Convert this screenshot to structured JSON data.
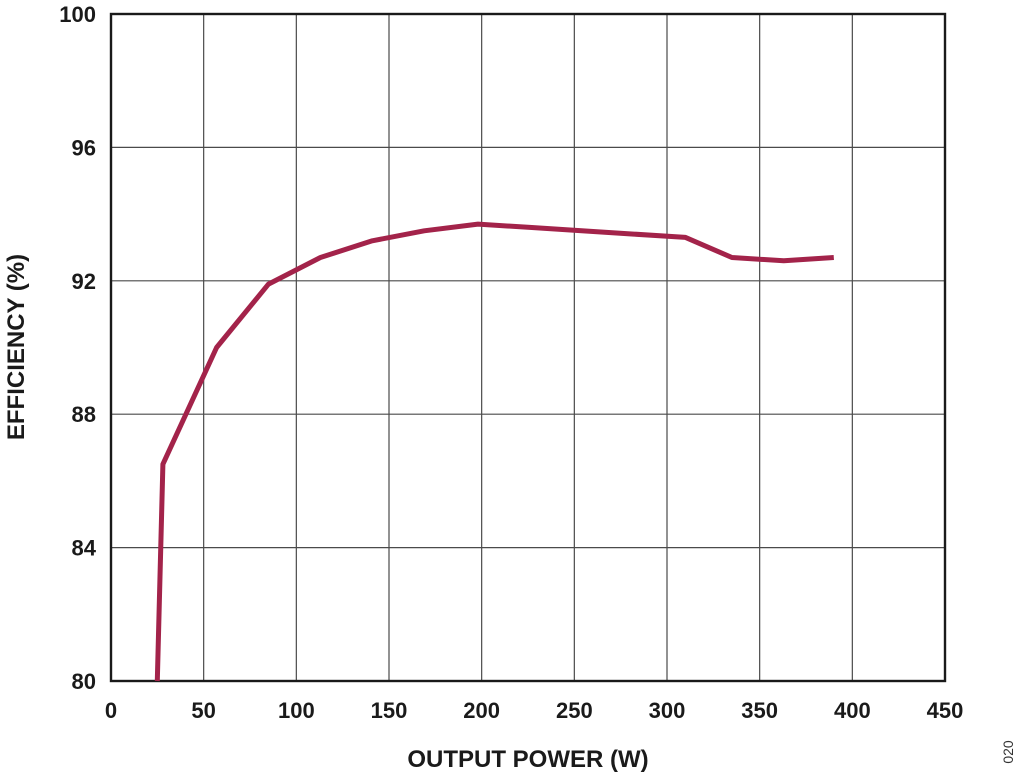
{
  "chart_data": {
    "type": "line",
    "title": "",
    "xlabel": "OUTPUT POWER (W)",
    "ylabel": "EFFICIENCY (%)",
    "xlim": [
      0,
      450
    ],
    "ylim": [
      80,
      100
    ],
    "xticks": [
      0,
      50,
      100,
      150,
      200,
      250,
      300,
      350,
      400,
      450
    ],
    "yticks": [
      80,
      84,
      88,
      92,
      96,
      100
    ],
    "grid": true,
    "series": [
      {
        "color": "#a3234a",
        "x": [
          25,
          28,
          57,
          85,
          113,
          141,
          169,
          198,
          226,
          254,
          282,
          310,
          335,
          363,
          390
        ],
        "y": [
          80.0,
          86.5,
          90.0,
          91.9,
          92.7,
          93.2,
          93.5,
          93.7,
          93.6,
          93.5,
          93.4,
          93.3,
          92.7,
          92.6,
          92.7
        ]
      }
    ]
  },
  "figure_id": "020"
}
